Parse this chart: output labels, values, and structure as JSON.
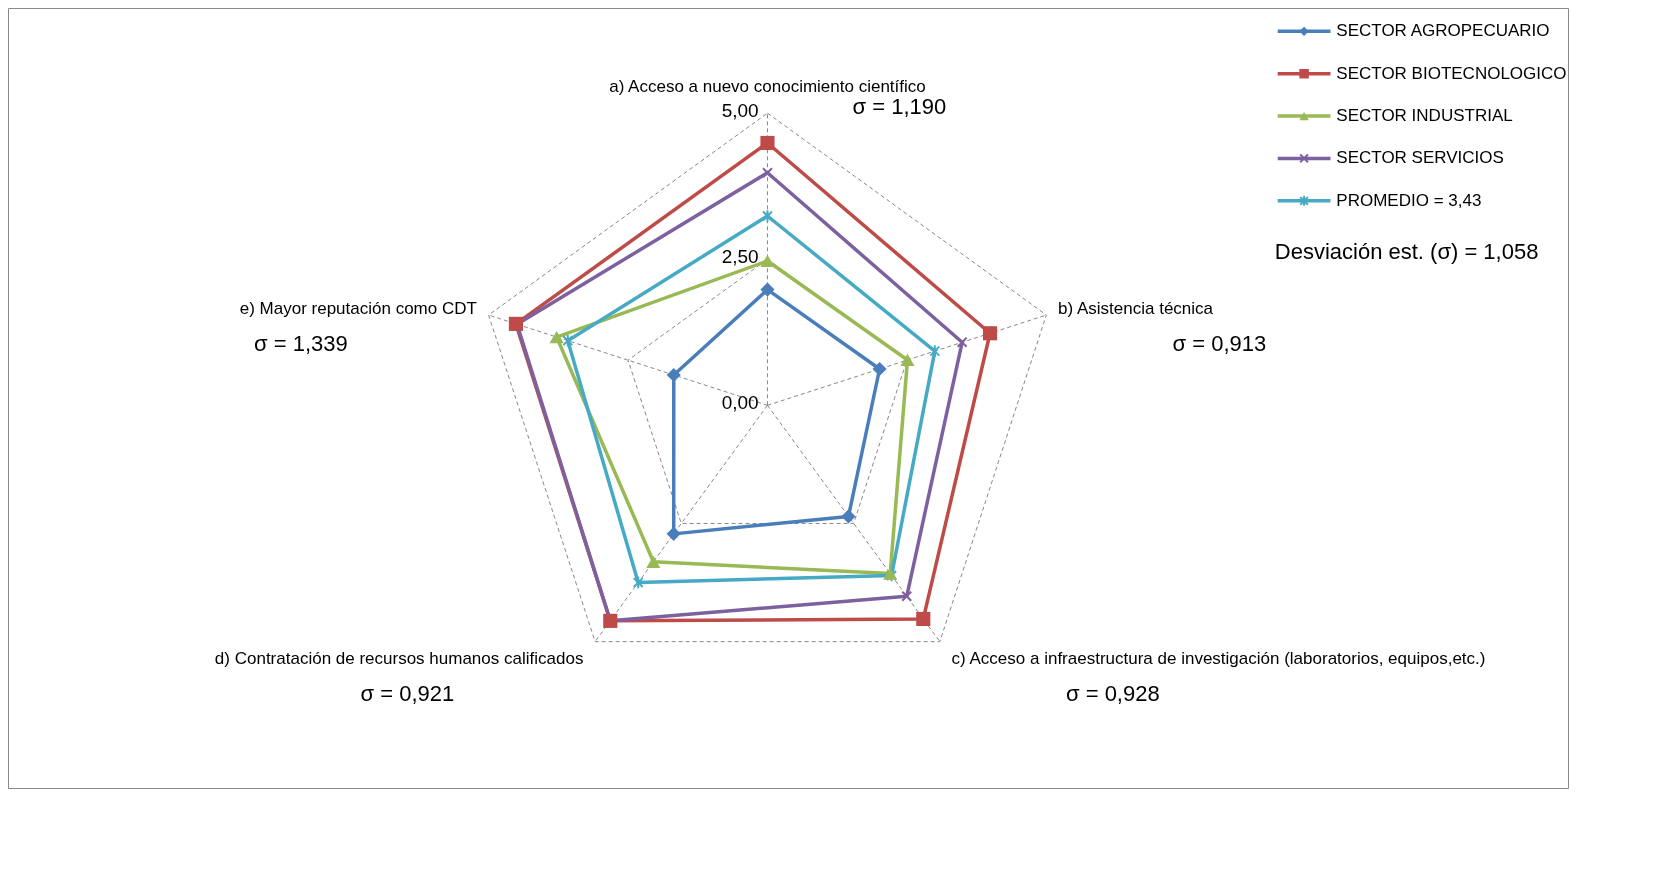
{
  "chart_data": {
    "type": "radar",
    "categories": [
      "a)  Acceso a nuevo conocimiento científico",
      "b)  Asistencia técnica",
      "c)  Acceso a infraestructura de investigación (laboratorios, equipos,etc.)",
      "d)  Contratación de recursos humanos calificados",
      "e)  Mayor reputación como CDT"
    ],
    "series": [
      {
        "name": "SECTOR AGROPECUARIO",
        "color": "#4a7ebb",
        "marker": "diamond",
        "values": [
          1.98,
          2.01,
          2.35,
          2.72,
          1.68
        ]
      },
      {
        "name": "SECTOR BIOTECNOLOGICO",
        "color": "#be4b48",
        "marker": "square",
        "values": [
          4.49,
          3.99,
          4.52,
          4.56,
          4.51
        ]
      },
      {
        "name": "SECTOR INDUSTRIAL",
        "color": "#98b954",
        "marker": "triangle",
        "values": [
          2.47,
          2.51,
          3.56,
          3.31,
          3.78
        ]
      },
      {
        "name": "SECTOR SERVICIOS",
        "color": "#7d60a0",
        "marker": "cross",
        "values": [
          3.98,
          3.49,
          4.04,
          4.56,
          4.49
        ]
      },
      {
        "name": "PROMEDIO  = 3,43",
        "color": "#46aac5",
        "marker": "star",
        "values": [
          3.24,
          3.0,
          3.6,
          3.75,
          3.58
        ]
      }
    ],
    "ylim": [
      0,
      5
    ],
    "yticks": [
      {
        "value": 0,
        "label": "0,00"
      },
      {
        "value": 2.5,
        "label": "2,50"
      },
      {
        "value": 5,
        "label": "5,00"
      }
    ],
    "grid": true,
    "legend": "top right",
    "annotations": [
      "σ = 1,190",
      "σ = 0,913",
      "σ = 0,928",
      "σ = 0,921",
      "σ = 1,339",
      "Desviación est. (σ) = 1,058"
    ]
  }
}
